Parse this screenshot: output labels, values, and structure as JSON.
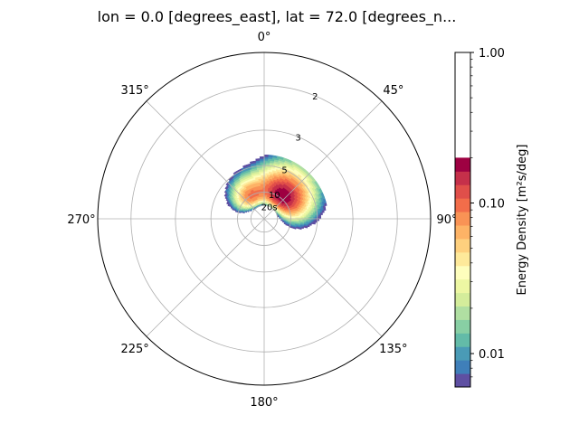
{
  "chart_data": {
    "type": "polar-contourf",
    "title": "lon = 0.0 [degrees_east], lat = 72.0 [degrees_n...",
    "theta_direction": "clockwise",
    "theta_zero": "top",
    "theta_ticks": [
      {
        "deg": 0,
        "label": "0°"
      },
      {
        "deg": 45,
        "label": "45°"
      },
      {
        "deg": 90,
        "label": "90°"
      },
      {
        "deg": 135,
        "label": "135°"
      },
      {
        "deg": 180,
        "label": "180°"
      },
      {
        "deg": 225,
        "label": "225°"
      },
      {
        "deg": 270,
        "label": "270°"
      },
      {
        "deg": 315,
        "label": "315°"
      }
    ],
    "radial_axis": {
      "scale": "reciprocal (frequency) of period",
      "ticks": [
        {
          "period": 2,
          "label": "2"
        },
        {
          "period": 3,
          "label": "3"
        },
        {
          "period": 5,
          "label": "5"
        },
        {
          "period": 10,
          "label": "10"
        },
        {
          "period": 20,
          "label": "20s"
        }
      ],
      "rlim_frequency": [
        0,
        0.625
      ]
    },
    "colorbar": {
      "label": "Energy Density [m²s/deg]",
      "scale": "log",
      "range": [
        0.006,
        1.0
      ],
      "filled_top": 0.2,
      "ticks": [
        {
          "value": 1.0,
          "label": "1.00"
        },
        {
          "value": 0.1,
          "label": "0.10"
        },
        {
          "value": 0.01,
          "label": "0.01"
        }
      ],
      "colors": [
        "#5e4fa2",
        "#3f7fb9",
        "#4a9bb6",
        "#63bba8",
        "#88cfa4",
        "#b0dfa2",
        "#d4ed9b",
        "#edf7a3",
        "#fefebd",
        "#fee99a",
        "#fed07e",
        "#fdb366",
        "#f99355",
        "#f26d4a",
        "#e04f4a",
        "#c5304a",
        "#9e0142"
      ]
    },
    "energy_field": {
      "direction_peak_deg": 40,
      "direction_spread_deg": 60,
      "peak_period_s": 9,
      "period_range_s": [
        4.2,
        20
      ],
      "log_peak": 0.2,
      "log_min": 0.006,
      "secondary_lobe": {
        "direction_deg": -28,
        "period_s": 10,
        "relative": 0.45
      }
    }
  }
}
